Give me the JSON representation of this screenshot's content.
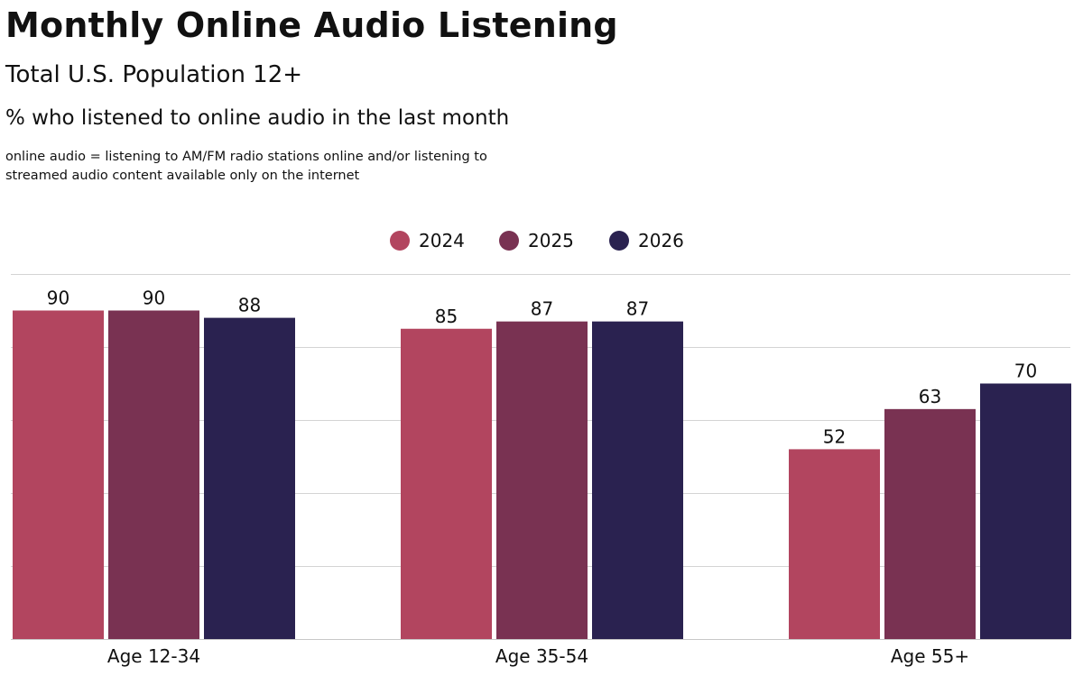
{
  "header": {
    "title": "Monthly Online Audio Listening",
    "subtitle": "Total U.S. Population 12+",
    "description": "% who listened to online audio in the last month",
    "note_line1": "online audio = listening to AM/FM radio stations online and/or listening to",
    "note_line2": "streamed audio content available only on the internet"
  },
  "chart_data": {
    "type": "bar",
    "categories": [
      "Age 12-34",
      "Age 35-54",
      "Age 55+"
    ],
    "series": [
      {
        "name": "2024",
        "color": "#b2455f",
        "values": [
          90,
          85,
          52
        ]
      },
      {
        "name": "2025",
        "color": "#793252",
        "values": [
          90,
          87,
          63
        ]
      },
      {
        "name": "2026",
        "color": "#2a2250",
        "values": [
          88,
          87,
          70
        ]
      }
    ],
    "ylim": [
      0,
      100
    ],
    "grid": true,
    "legend": "top-center"
  }
}
